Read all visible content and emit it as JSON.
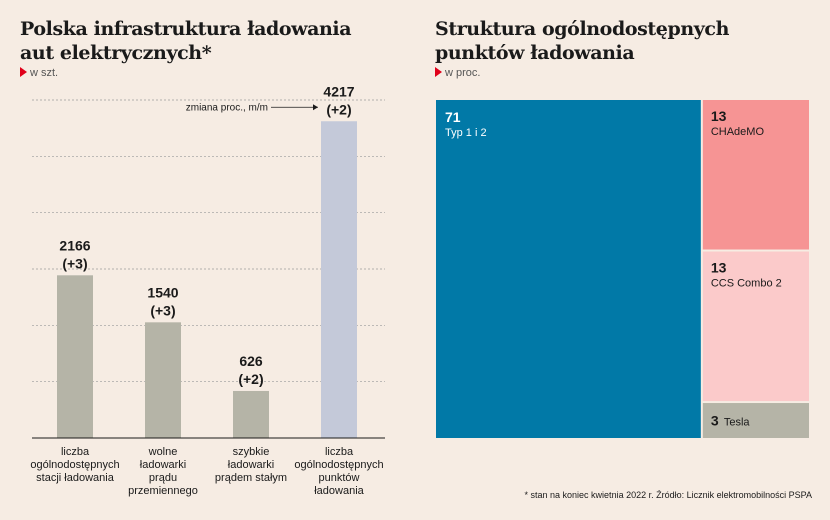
{
  "left": {
    "title_line1": "Polska infrastruktura ładowania",
    "title_line2": "aut elektrycznych*",
    "unit": "w szt."
  },
  "right": {
    "title_line1": "Struktura ogólnodostępnych",
    "title_line2": "punktów ładowania",
    "unit": "w proc."
  },
  "footnote": "* stan na koniec kwietnia 2022 r. Źródło: Licznik elektromobilności PSPA",
  "colors": {
    "bar_gray": "#b5b4a7",
    "bar_highlight": "#c4c9d9",
    "typ12": "#0179a7",
    "chademo": "#f69494",
    "ccs": "#fbcaca",
    "tesla": "#b5b4a7"
  },
  "chart_data": [
    {
      "type": "bar",
      "title": "Polska infrastruktura ładowania aut elektrycznych*",
      "unit": "w szt.",
      "categories": [
        [
          "liczba",
          "ogólnodostępnych",
          "stacji ładowania"
        ],
        [
          "wolne",
          "ładowarki",
          "prądu",
          "przemiennego"
        ],
        [
          "szybkie",
          "ładowarki",
          "prądem stałym"
        ],
        [
          "liczba",
          "ogólnodostępnych",
          "punktów",
          "ładowania"
        ]
      ],
      "values": [
        2166,
        1540,
        626,
        4217
      ],
      "changes": [
        "(+3)",
        "(+3)",
        "(+2)",
        "(+2)"
      ],
      "annotation": "zmiana proc., m/m",
      "ylim": [
        0,
        4500
      ],
      "grid": true
    },
    {
      "type": "treemap",
      "title": "Struktura ogólnodostępnych punktów ładowania",
      "unit": "w proc.",
      "items": [
        {
          "value": 71,
          "label": "Typ 1 i 2"
        },
        {
          "value": 13,
          "label": "CHAdeMO"
        },
        {
          "value": 13,
          "label": "CCS Combo 2"
        },
        {
          "value": 3,
          "label": "Tesla"
        }
      ]
    }
  ]
}
